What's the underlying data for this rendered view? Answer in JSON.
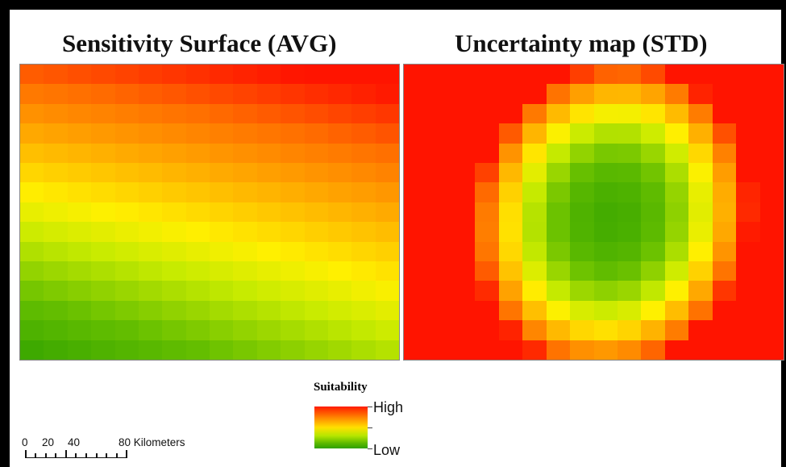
{
  "titles": {
    "left": "Sensitivity Surface (AVG)",
    "right": "Uncertainty map (STD)"
  },
  "legend": {
    "title": "Suitability",
    "high": "High",
    "low": "Low",
    "ramp_colors": [
      "#ff1a00",
      "#ff8c00",
      "#ffe000",
      "#b4e600",
      "#5ab800",
      "#2ea000"
    ]
  },
  "scale_bar": {
    "labels": [
      "0",
      "20",
      "40",
      "80 Kilometers"
    ],
    "units": "Kilometers"
  },
  "rasters": {
    "sensitivity_avg": {
      "rows": 15,
      "cols": 16,
      "value_range": [
        0,
        1
      ],
      "value_note_low_to_high": "0 = Low (green), 1 = High (red)"
    },
    "uncertainty_std": {
      "rows": 15,
      "cols": 16,
      "value_range": [
        0,
        1
      ]
    }
  }
}
